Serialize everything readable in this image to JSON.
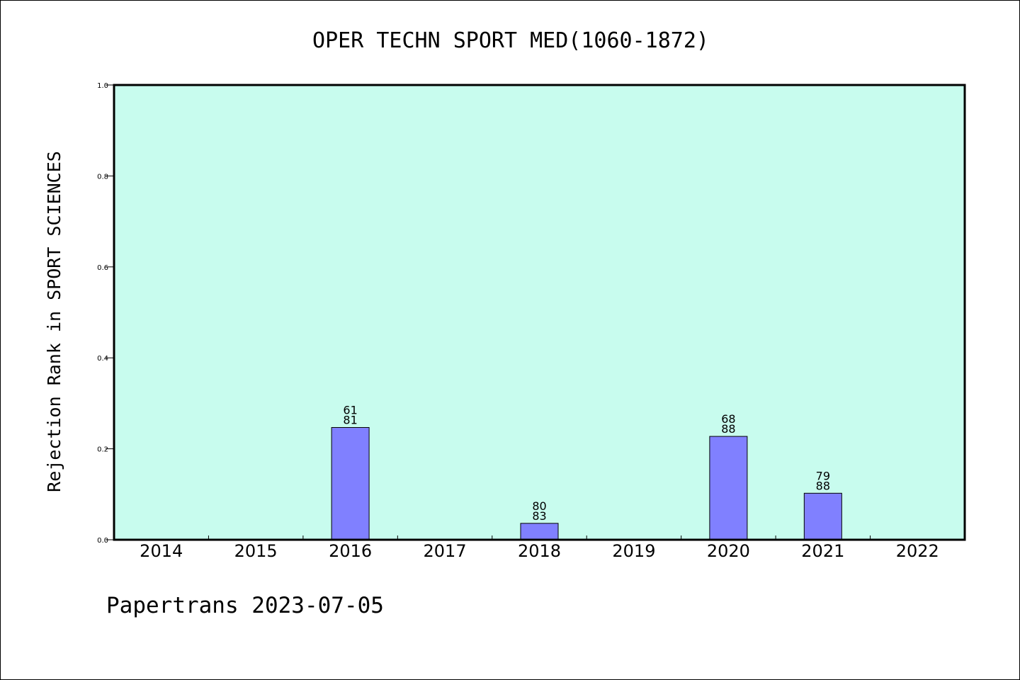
{
  "colors": {
    "plot_background": "#c8fcee",
    "bar_fill": "#8080ff",
    "bar_stroke": "#000000",
    "text": "#000000"
  },
  "footer": {
    "text": "Papertrans 2023-07-05"
  },
  "chart_data": {
    "type": "bar",
    "title": "OPER TECHN SPORT MED(1060-1872)",
    "xlabel": "",
    "ylabel": "Rejection Rank in SPORT SCIENCES",
    "ylim": [
      0,
      1.0
    ],
    "yticks": [
      "0.0",
      "0.2",
      "0.4",
      "0.6",
      "0.8",
      "1.0"
    ],
    "categories": [
      "2014",
      "2015",
      "2016",
      "2017",
      "2018",
      "2019",
      "2020",
      "2021",
      "2022"
    ],
    "values": [
      null,
      null,
      0.2469,
      null,
      0.0361,
      null,
      0.2273,
      0.1023,
      null
    ],
    "bar_labels": [
      null,
      null,
      [
        "61",
        "81"
      ],
      null,
      [
        "80",
        "83"
      ],
      null,
      [
        "68",
        "88"
      ],
      [
        "79",
        "88"
      ],
      null
    ],
    "grid": false,
    "legend": "none"
  }
}
